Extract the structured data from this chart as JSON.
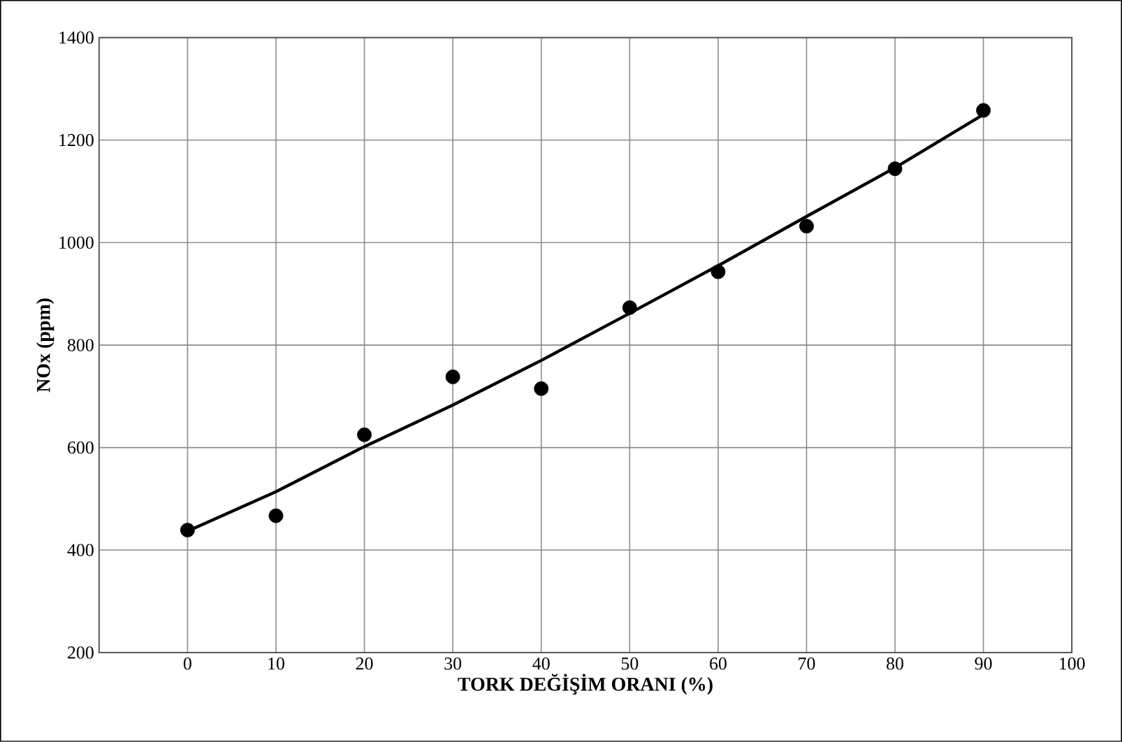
{
  "chart_data": {
    "type": "scatter",
    "xlabel": "TORK DEĞİŞİM ORANI (%)",
    "ylabel": "NOx (ppm)",
    "x": [
      0,
      10,
      20,
      30,
      40,
      50,
      60,
      70,
      80,
      90
    ],
    "series": [
      {
        "color": "#000000",
        "marker": "circle",
        "values": [
          439,
          467,
          625,
          738,
          715,
          873,
          943,
          1032,
          1144,
          1258
        ]
      },
      {
        "type": "line",
        "color": "#000000",
        "marker": "none",
        "line_style": "solid",
        "x": [
          0,
          10,
          20,
          30,
          40,
          50,
          60,
          70,
          80,
          90
        ],
        "values": [
          437,
          514,
          602,
          683,
          770,
          862,
          955,
          1051,
          1146,
          1250
        ]
      }
    ],
    "xlim": [
      -10,
      100
    ],
    "xticks": [
      0,
      10,
      20,
      30,
      40,
      50,
      60,
      70,
      80,
      90,
      100
    ],
    "ylim": [
      200,
      1400
    ],
    "yticks": [
      200,
      400,
      600,
      800,
      1000,
      1200,
      1400
    ],
    "grid": true
  }
}
